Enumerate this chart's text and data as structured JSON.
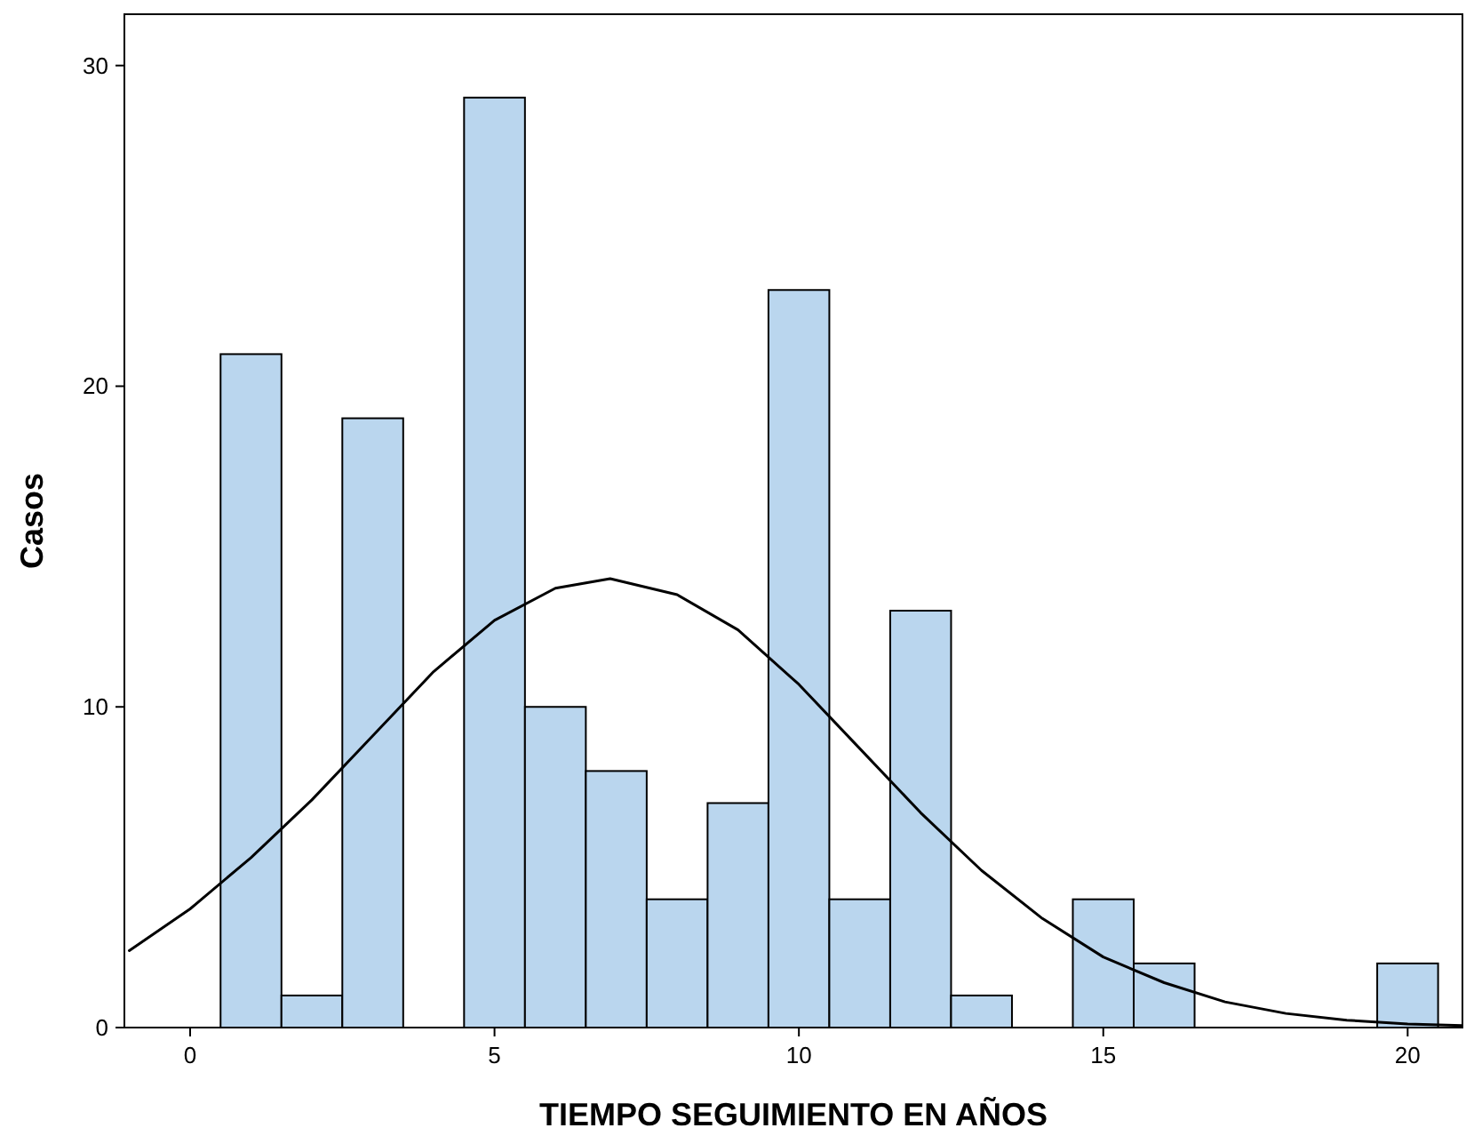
{
  "chart_data": {
    "type": "histogram",
    "xlabel": "TIEMPO SEGUIMIENTO EN AÑOS",
    "ylabel": "Casos",
    "bins": [
      0.5,
      1.5,
      2.5,
      3.5,
      4.5,
      5.5,
      6.5,
      7.5,
      8.5,
      9.5,
      10.5,
      11.5,
      12.5,
      13.5,
      14.5,
      15.5,
      16.5,
      17.5,
      18.5,
      19.5,
      20.5
    ],
    "values": [
      21,
      1,
      19,
      0,
      29,
      10,
      8,
      4,
      7,
      23,
      4,
      13,
      1,
      0,
      4,
      2,
      0,
      0,
      0,
      2
    ],
    "color": "#bad6ee",
    "series": [
      {
        "type": "line",
        "color": "#000000",
        "x": [
          -1,
          0,
          1,
          2,
          3,
          4,
          5,
          6,
          6.9,
          8,
          9,
          10,
          11,
          12,
          13,
          14,
          15,
          16,
          17,
          18,
          19,
          20,
          20.9
        ],
        "values": [
          2.4,
          3.7,
          5.3,
          7.1,
          9.1,
          11.1,
          12.7,
          13.7,
          14,
          13.5,
          12.4,
          10.7,
          8.7,
          6.7,
          4.9,
          3.4,
          2.2,
          1.4,
          0.8,
          0.44,
          0.23,
          0.11,
          0.06
        ]
      }
    ],
    "xlim": [
      -1.08,
      20.9
    ],
    "ylim": [
      0,
      31.6
    ],
    "xticks": [
      0,
      5,
      10,
      15,
      20
    ],
    "yticks": [
      0,
      10,
      20,
      30
    ],
    "grid": false
  }
}
